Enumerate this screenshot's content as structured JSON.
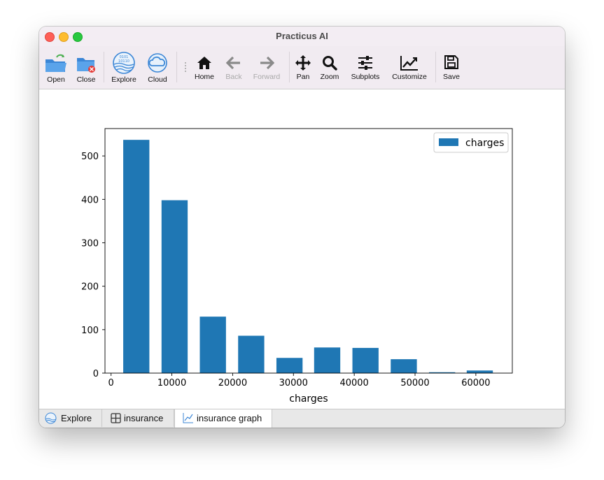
{
  "window": {
    "title": "Practicus AI"
  },
  "toolbar": {
    "open": "Open",
    "close": "Close",
    "explore": "Explore",
    "cloud": "Cloud",
    "home": "Home",
    "back": "Back",
    "forward": "Forward",
    "pan": "Pan",
    "zoom": "Zoom",
    "subplots": "Subplots",
    "customize": "Customize",
    "save": "Save"
  },
  "tabs": [
    {
      "label": "Explore",
      "icon": "globe-icon"
    },
    {
      "label": "insurance",
      "icon": "table-grid-icon"
    },
    {
      "label": "insurance graph",
      "icon": "line-chart-icon",
      "active": true
    }
  ],
  "colors": {
    "bar": "#1f77b4",
    "accent_red": "#fe5f57"
  },
  "chart_data": {
    "type": "bar",
    "title": "",
    "xlabel": "charges",
    "ylabel": "",
    "legend": [
      "charges"
    ],
    "legend_position": "top-right",
    "grid": false,
    "xlim": [
      -1000,
      66000
    ],
    "ylim": [
      0,
      563
    ],
    "xticks": [
      0,
      10000,
      20000,
      30000,
      40000,
      50000,
      60000
    ],
    "yticks": [
      0,
      100,
      200,
      300,
      400,
      500
    ],
    "series": [
      {
        "name": "charges",
        "bins": [
          {
            "x0": 2000,
            "x1": 6300,
            "value": 537
          },
          {
            "x0": 8300,
            "x1": 12600,
            "value": 398
          },
          {
            "x0": 14600,
            "x1": 18900,
            "value": 130
          },
          {
            "x0": 20900,
            "x1": 25200,
            "value": 86
          },
          {
            "x0": 27200,
            "x1": 31500,
            "value": 35
          },
          {
            "x0": 33400,
            "x1": 37700,
            "value": 59
          },
          {
            "x0": 39700,
            "x1": 44000,
            "value": 58
          },
          {
            "x0": 46000,
            "x1": 50300,
            "value": 32
          },
          {
            "x0": 52300,
            "x1": 56600,
            "value": 2
          },
          {
            "x0": 58500,
            "x1": 62800,
            "value": 6
          }
        ]
      }
    ]
  }
}
